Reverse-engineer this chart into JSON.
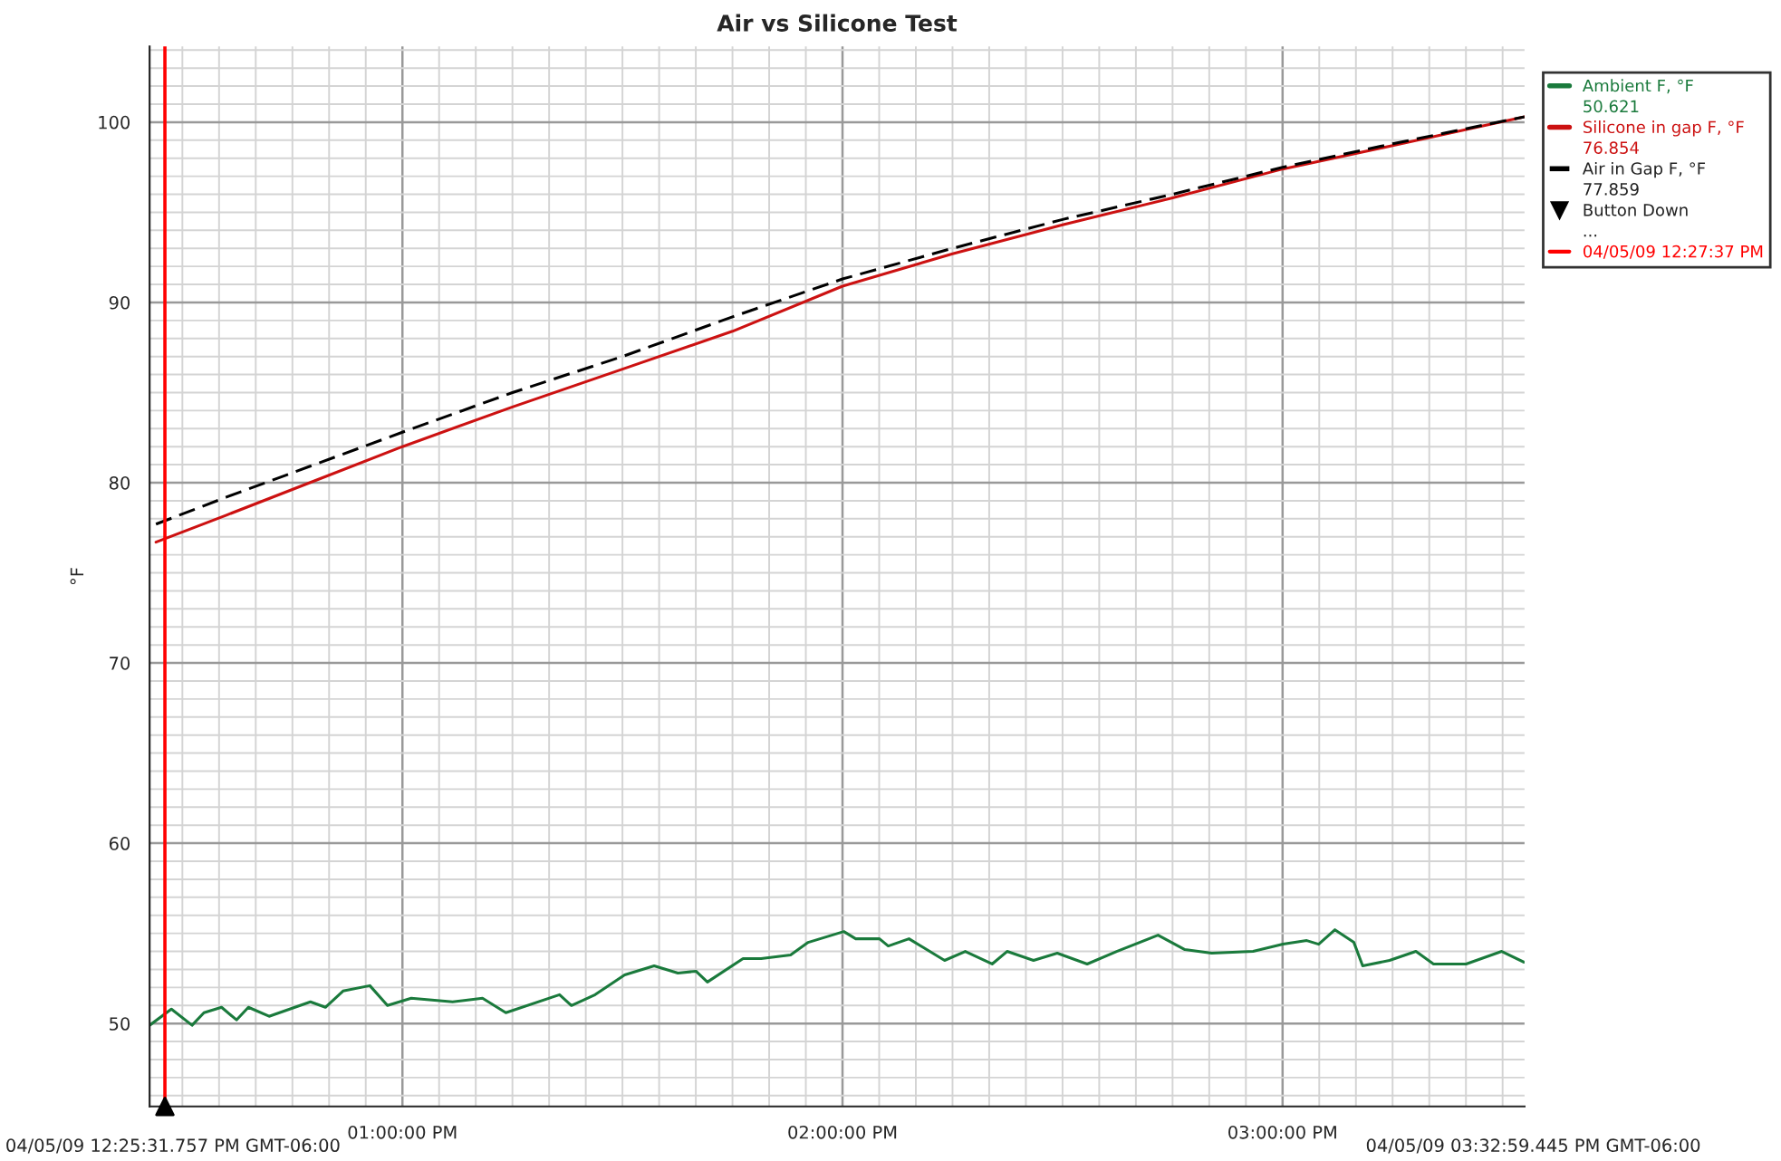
{
  "chart_data": {
    "type": "line",
    "title": "Air vs Silicone Test",
    "ylabel": "°F",
    "xlim": [
      12.4255,
      15.5498
    ],
    "ylim": [
      45.4,
      104.2
    ],
    "xticks": [
      {
        "value": 13,
        "label": "01:00:00 PM"
      },
      {
        "value": 14,
        "label": "02:00:00 PM"
      },
      {
        "value": 15,
        "label": "03:00:00 PM"
      }
    ],
    "yticks": [
      50,
      60,
      70,
      80,
      90,
      100
    ],
    "grid": true,
    "legend": "right",
    "marker": "none",
    "series": [
      {
        "name": "Ambient F, °F",
        "color": "#1a7a3c",
        "line_style": "solid",
        "x": [
          12.4255,
          12.475,
          12.522,
          12.549,
          12.589,
          12.623,
          12.65,
          12.697,
          12.791,
          12.825,
          12.865,
          12.926,
          12.966,
          13.02,
          13.114,
          13.182,
          13.235,
          13.357,
          13.384,
          13.438,
          13.505,
          13.572,
          13.626,
          13.667,
          13.693,
          13.774,
          13.815,
          13.882,
          13.922,
          14.003,
          14.03,
          14.084,
          14.104,
          14.151,
          14.232,
          14.279,
          14.34,
          14.374,
          14.434,
          14.488,
          14.556,
          14.623,
          14.717,
          14.778,
          14.839,
          14.933,
          15.001,
          15.055,
          15.082,
          15.119,
          15.162,
          15.182,
          15.243,
          15.303,
          15.343,
          15.417,
          15.498,
          15.549
        ],
        "values": [
          49.9,
          50.8,
          49.9,
          50.6,
          50.9,
          50.2,
          50.9,
          50.4,
          51.2,
          50.9,
          51.8,
          52.1,
          51.0,
          51.4,
          51.2,
          51.4,
          50.6,
          51.6,
          51.0,
          51.6,
          52.7,
          53.2,
          52.8,
          52.9,
          52.3,
          53.6,
          53.6,
          53.8,
          54.5,
          55.1,
          54.7,
          54.7,
          54.3,
          54.7,
          53.5,
          54.0,
          53.3,
          54.0,
          53.5,
          53.9,
          53.3,
          54.0,
          54.9,
          54.1,
          53.9,
          54.0,
          54.4,
          54.6,
          54.4,
          55.2,
          54.5,
          53.2,
          53.5,
          54.0,
          53.3,
          53.3,
          54.0,
          53.4
        ]
      },
      {
        "name": "Silicone in gap F, °F",
        "color": "#cc1111",
        "line_style": "solid",
        "x": [
          12.44,
          12.6,
          12.8,
          13.0,
          13.25,
          13.5,
          13.75,
          14.0,
          14.25,
          14.5,
          14.75,
          15.0,
          15.25,
          15.5498
        ],
        "values": [
          76.7,
          78.2,
          80.1,
          82.0,
          84.2,
          86.3,
          88.4,
          90.9,
          92.7,
          94.3,
          95.8,
          97.4,
          98.7,
          100.3
        ]
      },
      {
        "name": "Air in Gap F, °F",
        "color": "#000000",
        "line_style": "dashed",
        "x": [
          12.44,
          12.6,
          12.8,
          13.0,
          13.25,
          13.5,
          13.75,
          14.0,
          14.25,
          14.5,
          14.75,
          15.0,
          15.25,
          15.5498
        ],
        "values": [
          77.7,
          79.2,
          81.0,
          82.8,
          85.0,
          87.0,
          89.2,
          91.3,
          93.0,
          94.6,
          96.0,
          97.5,
          98.8,
          100.3
        ]
      },
      {
        "name": "Button Down",
        "type": "scatter",
        "marker": "triangle",
        "color": "#000000",
        "x": [
          12.4603
        ],
        "values": [
          45.4
        ]
      }
    ],
    "ref_lines": [
      {
        "axis": "x",
        "value": 12.4603,
        "label": "04/05/09 12:27:37 PM",
        "color": "#ff0000",
        "line_style": "solid"
      }
    ],
    "annotations": [
      "50.621",
      "76.854",
      "77.859",
      "04/05/09 12:25:31.757 PM GMT-06:00",
      "04/05/09 03:32:59.445 PM GMT-06:00",
      "..."
    ]
  }
}
